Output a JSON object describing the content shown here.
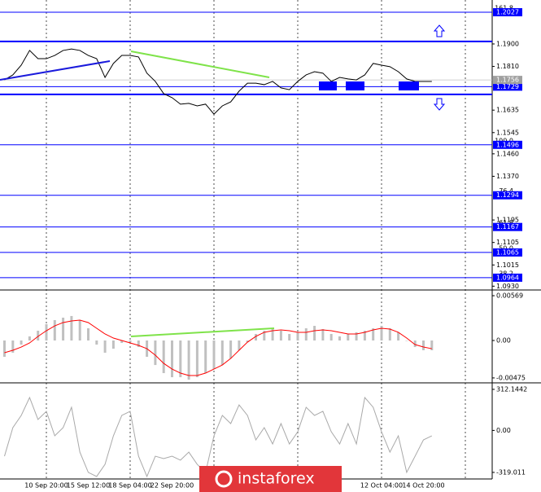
{
  "chart_data": [
    {
      "type": "line",
      "color": "#000000",
      "ylim": [
        1.0918,
        1.2076
      ],
      "yticks": [
        {
          "value": 1.19,
          "label": "1.1900"
        },
        {
          "value": 1.181,
          "label": "1.1810"
        },
        1.1635,
        1.1545,
        {
          "value": 1.146,
          "label": "1.1460"
        },
        {
          "value": 1.137,
          "label": "1.1370"
        },
        1.1195,
        1.1105,
        1.1015,
        {
          "value": 1.093,
          "label": "1.0930"
        }
      ],
      "levels": [
        {
          "ratio": "161.8",
          "price": 1.2027
        },
        {
          "ratio": "127.2",
          "price": 1.1729
        },
        {
          "ratio": "100.0",
          "price": 1.1496
        },
        {
          "ratio": "76.4",
          "price": 1.1294
        },
        {
          "ratio": "61.8",
          "price": 1.1167
        },
        {
          "ratio": "50.0",
          "price": 1.1065
        },
        {
          "ratio": "38.2",
          "price": 1.0964
        }
      ],
      "level_color": "#0000ff",
      "channel": [
        1.191,
        1.1698
      ],
      "current_price": 1.1756,
      "values": [
        1.1756,
        1.1776,
        1.1815,
        1.1874,
        1.1841,
        1.1841,
        1.1854,
        1.1874,
        1.188,
        1.1874,
        1.1854,
        1.1841,
        1.1766,
        1.1822,
        1.1854,
        1.1854,
        1.1848,
        1.1783,
        1.175,
        1.1701,
        1.1685,
        1.1659,
        1.1662,
        1.1652,
        1.1659,
        1.1619,
        1.1652,
        1.1668,
        1.1711,
        1.1743,
        1.1743,
        1.1737,
        1.175,
        1.1724,
        1.1717,
        1.175,
        1.1776,
        1.1789,
        1.1783,
        1.175,
        1.1766,
        1.176,
        1.1756,
        1.1776,
        1.1822,
        1.1815,
        1.1809,
        1.1789,
        1.176,
        1.175,
        1.175,
        1.175
      ]
    },
    {
      "type": "bar",
      "ylim": [
        -0.00517,
        0.00631
      ],
      "yticks": [
        0.00569,
        {
          "value": 0,
          "label": "0.00"
        },
        -0.00475
      ],
      "series": [
        {
          "type": "bar",
          "color": "#c0c0c0",
          "values": [
            -0.00207,
            -0.00155,
            -0.00052,
            0.00052,
            0.00124,
            0.00207,
            0.00259,
            0.0029,
            0.00311,
            0.00259,
            0.00155,
            -0.00052,
            -0.00155,
            -0.00104,
            -0.00031,
            -0.00021,
            -0.00083,
            -0.00207,
            -0.00311,
            -0.00414,
            -0.00466,
            -0.00466,
            -0.00497,
            -0.00466,
            -0.00414,
            -0.00362,
            -0.00311,
            -0.00228,
            -0.00124,
            -0.00021,
            0.00083,
            0.00124,
            0.00155,
            0.00124,
            0.00083,
            0.00104,
            0.00155,
            0.00186,
            0.00145,
            0.00083,
            0.00052,
            0.00083,
            0.00104,
            0.00124,
            0.00155,
            0.00186,
            0.00155,
            0.00104,
            0,
            -0.00083,
            -0.00124,
            -0.00124
          ]
        },
        {
          "type": "line",
          "color": "#ff0000",
          "values": [
            -0.00155,
            -0.00124,
            -0.00083,
            -0.00031,
            0.00052,
            0.00124,
            0.00186,
            0.00228,
            0.00248,
            0.00259,
            0.00228,
            0.00155,
            0.00083,
            0.00031,
            0,
            -0.00031,
            -0.00062,
            -0.00104,
            -0.00186,
            -0.0029,
            -0.00362,
            -0.00414,
            -0.00445,
            -0.00445,
            -0.00414,
            -0.00362,
            -0.00311,
            -0.00228,
            -0.00124,
            -0.00021,
            0.00052,
            0.00104,
            0.00124,
            0.00135,
            0.00124,
            0.00104,
            0.00104,
            0.00124,
            0.00135,
            0.00124,
            0.00104,
            0.00083,
            0.00083,
            0.00104,
            0.00135,
            0.00155,
            0.00145,
            0.00104,
            0.00031,
            -0.00052,
            -0.00083,
            -0.00104
          ]
        }
      ]
    },
    {
      "type": "line",
      "color": "#a9a9a9",
      "ylim": [
        -369,
        343
      ],
      "yticks": [
        312.1442,
        {
          "value": 0,
          "label": "0.00"
        },
        -319.011
      ],
      "categories": [
        null,
        null,
        null,
        null,
        null,
        "10 Sep 20:00",
        null,
        null,
        null,
        null,
        "15 Sep 12:00",
        null,
        null,
        null,
        null,
        "18 Sep 04:00",
        null,
        null,
        null,
        null,
        "22 Sep 20:00",
        null,
        null,
        null,
        null,
        null,
        null,
        null,
        null,
        null,
        null,
        null,
        null,
        null,
        null,
        null,
        null,
        null,
        null,
        null,
        null,
        null,
        null,
        null,
        null,
        "12 Oct 04:00",
        null,
        null,
        null,
        null,
        "14 Oct 20:00",
        null
      ],
      "values": [
        -196,
        21,
        114,
        250,
        83,
        145,
        -41,
        21,
        176,
        -165,
        -319,
        -350,
        -258,
        -41,
        114,
        145,
        -196,
        -350,
        -196,
        -214,
        -196,
        -226,
        -165,
        -258,
        -319,
        -41,
        114,
        52,
        194,
        114,
        -72,
        21,
        -103,
        52,
        -103,
        -10,
        176,
        114,
        145,
        -10,
        -103,
        52,
        -103,
        250,
        176,
        -10,
        -165,
        -41,
        -319,
        -196,
        -72,
        -41
      ]
    }
  ],
  "watermark": "instaforex"
}
